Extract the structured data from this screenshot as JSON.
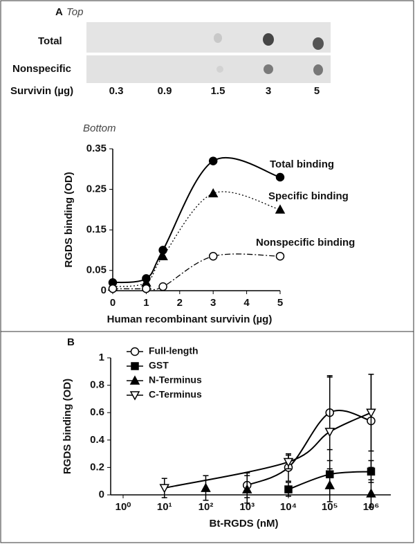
{
  "panel_a": {
    "label": "A",
    "subtitle": "Top",
    "rows": [
      "Total",
      "Nonspecific"
    ],
    "amount_label": "Survivin (µg)",
    "amounts": [
      "0.3",
      "0.9",
      "1.5",
      "3",
      "5"
    ]
  },
  "chart_data": [
    {
      "type": "line",
      "subtitle": "Bottom",
      "x_label": "Human recombinant survivin (µg)",
      "y_label": "RGDS binding (OD)",
      "xlim": [
        0,
        5
      ],
      "ylim": [
        0,
        0.35
      ],
      "xticks": [
        0,
        1,
        2,
        3,
        4,
        5
      ],
      "yticks": [
        0,
        0.05,
        0.15,
        0.25,
        0.35
      ],
      "log_x": false,
      "legend": "direct",
      "series": [
        {
          "name": "Total binding",
          "color": "#000000",
          "marker": "circle",
          "filled": true,
          "line": "solid",
          "x": [
            0,
            1,
            1.5,
            3,
            5
          ],
          "values": [
            0.02,
            0.03,
            0.1,
            0.32,
            0.28
          ]
        },
        {
          "name": "Specific binding",
          "color": "#000000",
          "marker": "triangle",
          "filled": true,
          "line": "dotted",
          "x": [
            0,
            1,
            1.5,
            3,
            5
          ],
          "values": [
            0.01,
            0.02,
            0.085,
            0.24,
            0.2
          ]
        },
        {
          "name": "Nonspecific binding",
          "color": "#000000",
          "marker": "circle",
          "filled": false,
          "line": "dashdot",
          "x": [
            0,
            1,
            1.5,
            3,
            5
          ],
          "values": [
            0.005,
            0.005,
            0.01,
            0.085,
            0.085
          ]
        }
      ]
    },
    {
      "type": "line",
      "panel": "B",
      "x_label": "Bt-RGDS (nM)",
      "y_label": "RGDS binding  (OD)",
      "xlim": [
        0.5,
        3000000
      ],
      "ylim": [
        0,
        1
      ],
      "xticks": [
        {
          "value": 1,
          "label": "10⁰"
        },
        {
          "value": 10,
          "label": "10¹"
        },
        {
          "value": 100,
          "label": "10²"
        },
        {
          "value": 1000,
          "label": "10³"
        },
        {
          "value": 10000,
          "label": "10⁴"
        },
        {
          "value": 100000,
          "label": "10⁵"
        },
        {
          "value": 1000000,
          "label": "10⁶"
        }
      ],
      "yticks": [
        0,
        0.2,
        0.4,
        0.6,
        0.8,
        1
      ],
      "log_x": true,
      "legend": "upper left",
      "series": [
        {
          "name": "Full-length",
          "color": "#000000",
          "marker": "circle",
          "filled": false,
          "line": "solid",
          "x": [
            1000,
            10000,
            100000,
            1000000
          ],
          "values": [
            0.07,
            0.2,
            0.6,
            0.54
          ],
          "errors": [
            0.09,
            0.1,
            0.27,
            0.34
          ]
        },
        {
          "name": "GST",
          "color": "#000000",
          "marker": "square",
          "filled": true,
          "line": "solid",
          "x": [
            10000,
            100000,
            1000000
          ],
          "values": [
            0.04,
            0.15,
            0.17
          ],
          "errors": [
            0.05,
            0.1,
            0.08
          ]
        },
        {
          "name": "N-Terminus",
          "color": "#000000",
          "marker": "triangle",
          "filled": true,
          "line": "none",
          "x": [
            100,
            1000,
            100000,
            1000000
          ],
          "values": [
            0.05,
            0.04,
            0.07,
            0.01
          ],
          "errors": [
            0.09,
            0.1,
            0.12,
            0.1
          ]
        },
        {
          "name": "C-Terminus",
          "color": "#000000",
          "marker": "triangle-down",
          "filled": false,
          "line": "solid",
          "x": [
            10,
            10000,
            100000,
            1000000
          ],
          "values": [
            0.05,
            0.24,
            0.46,
            0.6
          ],
          "errors": [
            0.07,
            0.05,
            0.4,
            0.28
          ]
        }
      ]
    }
  ]
}
